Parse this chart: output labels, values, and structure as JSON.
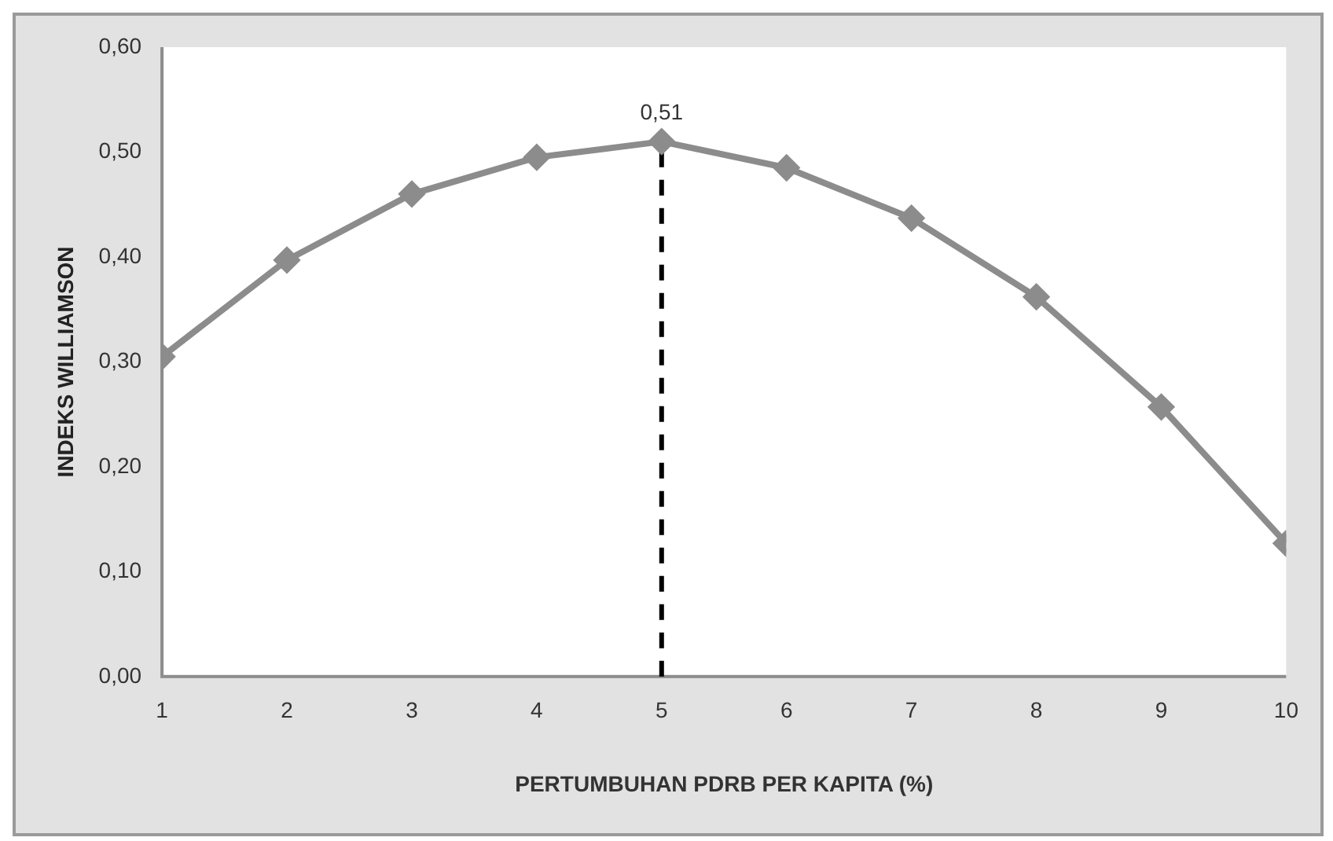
{
  "chart_data": {
    "type": "line",
    "xlabel": "PERTUMBUHAN PDRB PER KAPITA (%)",
    "ylabel": "INDEKS WILLIAMSON",
    "x": [
      1,
      2,
      3,
      4,
      5,
      6,
      7,
      8,
      9,
      10
    ],
    "series": [
      {
        "color": "#8c8c8c",
        "values": [
          0.305,
          0.397,
          0.46,
          0.495,
          0.51,
          0.485,
          0.437,
          0.362,
          0.257,
          0.127
        ]
      }
    ],
    "xlim": [
      1,
      10
    ],
    "xticks": [
      1,
      2,
      3,
      4,
      5,
      6,
      7,
      8,
      9,
      10
    ],
    "ylim": [
      0,
      0.6
    ],
    "yticks": [
      {
        "value": 0,
        "label": "0,00"
      },
      {
        "value": 0.1,
        "label": "0,10"
      },
      {
        "value": 0.2,
        "label": "0,20"
      },
      {
        "value": 0.3,
        "label": "0,30"
      },
      {
        "value": 0.4,
        "label": "0,40"
      },
      {
        "value": 0.5,
        "label": "0,50"
      },
      {
        "value": 0.6,
        "label": "0,60"
      }
    ],
    "ref_lines": [
      {
        "axis": "x",
        "value": 5,
        "color": "#000000",
        "line_style": "dashed"
      }
    ],
    "annotations": [
      {
        "text": "0,51",
        "x": 5,
        "y": 0.51
      }
    ],
    "marker": "diamond",
    "grid": false,
    "legend": false,
    "line_style": "solid"
  }
}
